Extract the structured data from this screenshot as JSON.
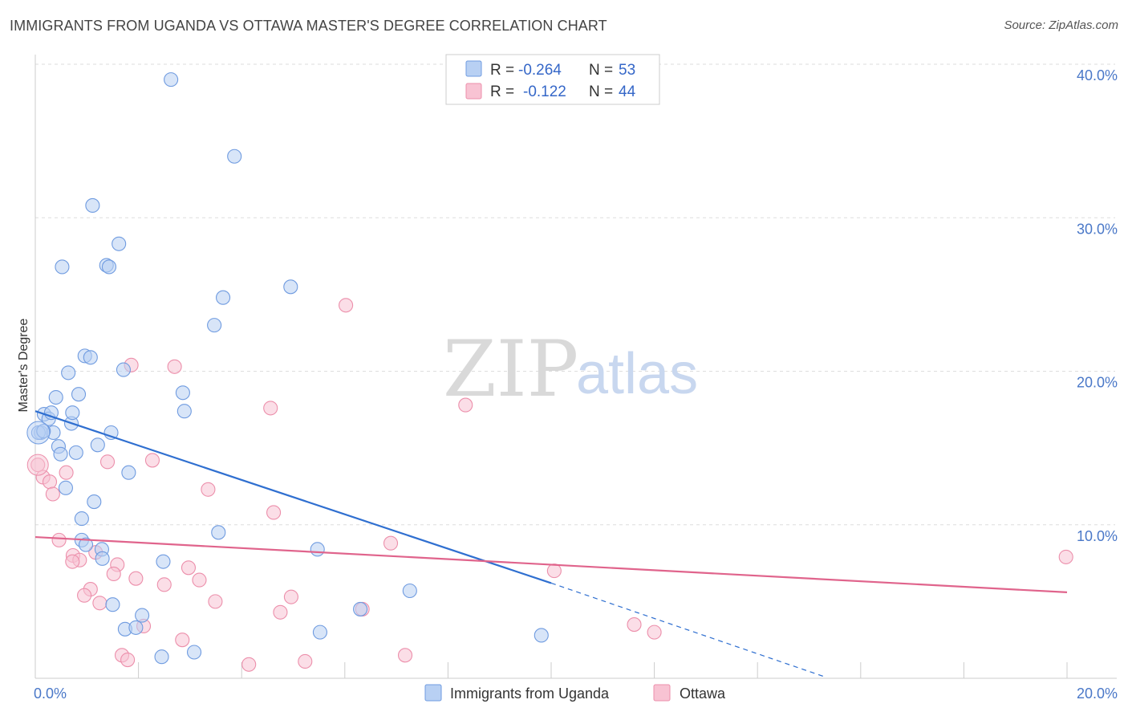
{
  "title": "IMMIGRANTS FROM UGANDA VS OTTAWA MASTER'S DEGREE CORRELATION CHART",
  "source": "Source: ZipAtlas.com",
  "watermark": {
    "part1": "ZIP",
    "part2": "atlas"
  },
  "colors": {
    "blue_fill": "#b8d0f3",
    "blue_stroke": "#6f9be0",
    "blue_line": "#2f6fd0",
    "pink_fill": "#f8c3d3",
    "pink_stroke": "#ec8fab",
    "pink_line": "#e0648c",
    "grid": "#dddddd"
  },
  "chart_data": {
    "type": "scatter",
    "xlabel": "",
    "ylabel": "Master's Degree",
    "xlim": [
      0,
      20
    ],
    "ylim": [
      0,
      40
    ],
    "y_ticks": [
      {
        "value": 10,
        "label": "10.0%"
      },
      {
        "value": 20,
        "label": "20.0%"
      },
      {
        "value": 30,
        "label": "30.0%"
      },
      {
        "value": 40,
        "label": "40.0%"
      }
    ],
    "x_tick_labels": [
      {
        "value": 0,
        "label": "0.0%"
      },
      {
        "value": 20,
        "label": "20.0%"
      }
    ],
    "legend": {
      "series": [
        {
          "r_label": "R =",
          "r_value": "-0.264",
          "n_label": "N =",
          "n_value": "53"
        },
        {
          "r_label": "R =",
          "r_value": "-0.122",
          "n_label": "N =",
          "n_value": "44"
        }
      ]
    },
    "series": [
      {
        "name": "Immigrants from Uganda",
        "color": "blue",
        "trend": {
          "x0": 0,
          "y0": 17.4,
          "x1": 10.0,
          "y1": 6.2,
          "dash_to_x": 15.3,
          "dash_to_y": 0.1
        },
        "points": [
          [
            2.63,
            39.0
          ],
          [
            3.86,
            34.0
          ],
          [
            1.11,
            30.8
          ],
          [
            1.62,
            28.3
          ],
          [
            0.52,
            26.8
          ],
          [
            1.38,
            26.9
          ],
          [
            1.43,
            26.8
          ],
          [
            4.95,
            25.5
          ],
          [
            3.64,
            24.8
          ],
          [
            3.47,
            23.0
          ],
          [
            0.96,
            21.0
          ],
          [
            1.07,
            20.9
          ],
          [
            1.71,
            20.1
          ],
          [
            0.64,
            19.9
          ],
          [
            0.4,
            18.3
          ],
          [
            0.84,
            18.5
          ],
          [
            2.86,
            18.6
          ],
          [
            2.89,
            17.4
          ],
          [
            0.17,
            17.2
          ],
          [
            0.26,
            16.9
          ],
          [
            0.31,
            17.3
          ],
          [
            0.7,
            16.6
          ],
          [
            0.72,
            17.3
          ],
          [
            0.11,
            16.0
          ],
          [
            0.35,
            16.0
          ],
          [
            1.47,
            16.0
          ],
          [
            0.45,
            15.1
          ],
          [
            1.21,
            15.2
          ],
          [
            0.79,
            14.7
          ],
          [
            0.49,
            14.6
          ],
          [
            1.81,
            13.4
          ],
          [
            0.59,
            12.4
          ],
          [
            1.14,
            11.5
          ],
          [
            0.9,
            10.4
          ],
          [
            3.55,
            9.5
          ],
          [
            0.9,
            9.0
          ],
          [
            0.98,
            8.7
          ],
          [
            1.29,
            8.4
          ],
          [
            5.47,
            8.4
          ],
          [
            1.3,
            7.8
          ],
          [
            2.48,
            7.6
          ],
          [
            7.26,
            5.7
          ],
          [
            1.5,
            4.8
          ],
          [
            6.3,
            4.5
          ],
          [
            2.07,
            4.1
          ],
          [
            1.74,
            3.2
          ],
          [
            1.95,
            3.3
          ],
          [
            5.52,
            3.0
          ],
          [
            9.81,
            2.8
          ],
          [
            3.08,
            1.7
          ],
          [
            2.45,
            1.4
          ],
          [
            0.06,
            16.0
          ],
          [
            0.16,
            16.1
          ]
        ]
      },
      {
        "name": "Ottawa",
        "color": "pink",
        "trend": {
          "x0": 0,
          "y0": 9.2,
          "x1": 20,
          "y1": 5.6
        },
        "points": [
          [
            6.02,
            24.3
          ],
          [
            1.86,
            20.4
          ],
          [
            2.7,
            20.3
          ],
          [
            8.34,
            17.8
          ],
          [
            4.56,
            17.6
          ],
          [
            1.4,
            14.1
          ],
          [
            2.27,
            14.2
          ],
          [
            0.6,
            13.4
          ],
          [
            0.15,
            13.1
          ],
          [
            0.28,
            12.8
          ],
          [
            0.34,
            12.0
          ],
          [
            3.35,
            12.3
          ],
          [
            4.62,
            10.8
          ],
          [
            6.89,
            8.8
          ],
          [
            0.46,
            9.0
          ],
          [
            0.73,
            8.0
          ],
          [
            0.86,
            7.7
          ],
          [
            0.72,
            7.6
          ],
          [
            1.17,
            8.2
          ],
          [
            1.59,
            7.4
          ],
          [
            2.97,
            7.2
          ],
          [
            10.06,
            7.0
          ],
          [
            1.52,
            6.8
          ],
          [
            1.95,
            6.5
          ],
          [
            3.18,
            6.4
          ],
          [
            2.5,
            6.1
          ],
          [
            1.07,
            5.8
          ],
          [
            0.95,
            5.4
          ],
          [
            4.96,
            5.3
          ],
          [
            3.49,
            5.0
          ],
          [
            1.25,
            4.9
          ],
          [
            4.75,
            4.3
          ],
          [
            6.34,
            4.5
          ],
          [
            11.61,
            3.5
          ],
          [
            12.0,
            3.0
          ],
          [
            2.1,
            3.4
          ],
          [
            2.85,
            2.5
          ],
          [
            1.68,
            1.5
          ],
          [
            1.79,
            1.2
          ],
          [
            7.17,
            1.5
          ],
          [
            5.23,
            1.1
          ],
          [
            4.14,
            0.9
          ],
          [
            19.98,
            7.9
          ],
          [
            0.05,
            13.9
          ]
        ]
      }
    ]
  }
}
